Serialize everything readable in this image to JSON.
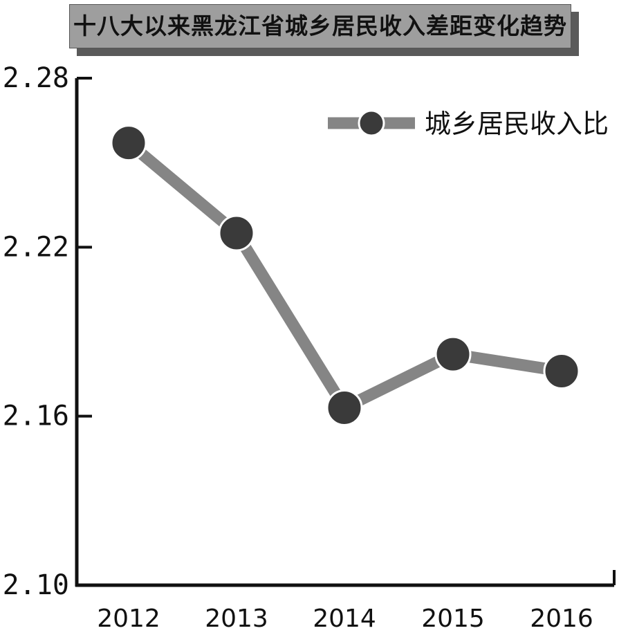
{
  "chart_data": {
    "type": "line",
    "title": "十八大以来黑龙江省城乡居民收入差距变化趋势",
    "categories": [
      "2012",
      "2013",
      "2014",
      "2015",
      "2016"
    ],
    "series": [
      {
        "name": "城乡居民收入比",
        "values": [
          2.257,
          2.225,
          2.163,
          2.182,
          2.176
        ]
      }
    ],
    "yticks": [
      "2.28",
      "2.22",
      "2.16",
      "2.10"
    ],
    "ylim": [
      2.1,
      2.28
    ],
    "grid": false,
    "legend": "top-right",
    "colors": {
      "line": "#858585",
      "marker": "#3a3a3a",
      "axis": "#111111",
      "title_bg": "#9e9e9e",
      "title_shadow": "#5a5a5a"
    }
  }
}
